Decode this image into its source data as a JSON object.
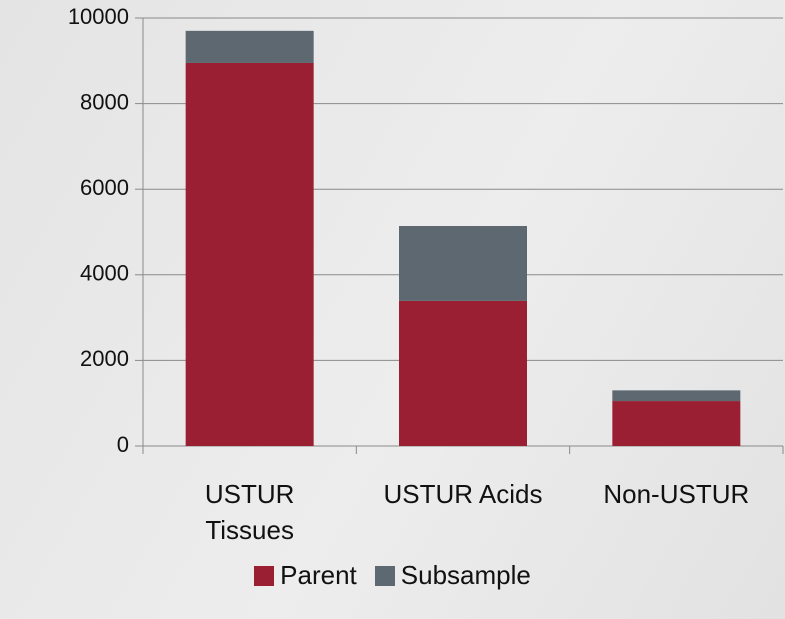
{
  "chart_data": {
    "type": "stacked_bar",
    "categories": [
      "USTUR Tissues",
      "USTUR Acids",
      "Non-USTUR"
    ],
    "series": [
      {
        "name": "Parent",
        "color": "#9b1f32",
        "values": [
          8950,
          3390,
          1050
        ]
      },
      {
        "name": "Subsample",
        "color": "#5d6871",
        "values": [
          750,
          1750,
          250
        ]
      }
    ],
    "ylim": [
      0,
      10000
    ],
    "yticks": [
      0,
      2000,
      4000,
      6000,
      8000,
      10000
    ],
    "grid": true
  }
}
